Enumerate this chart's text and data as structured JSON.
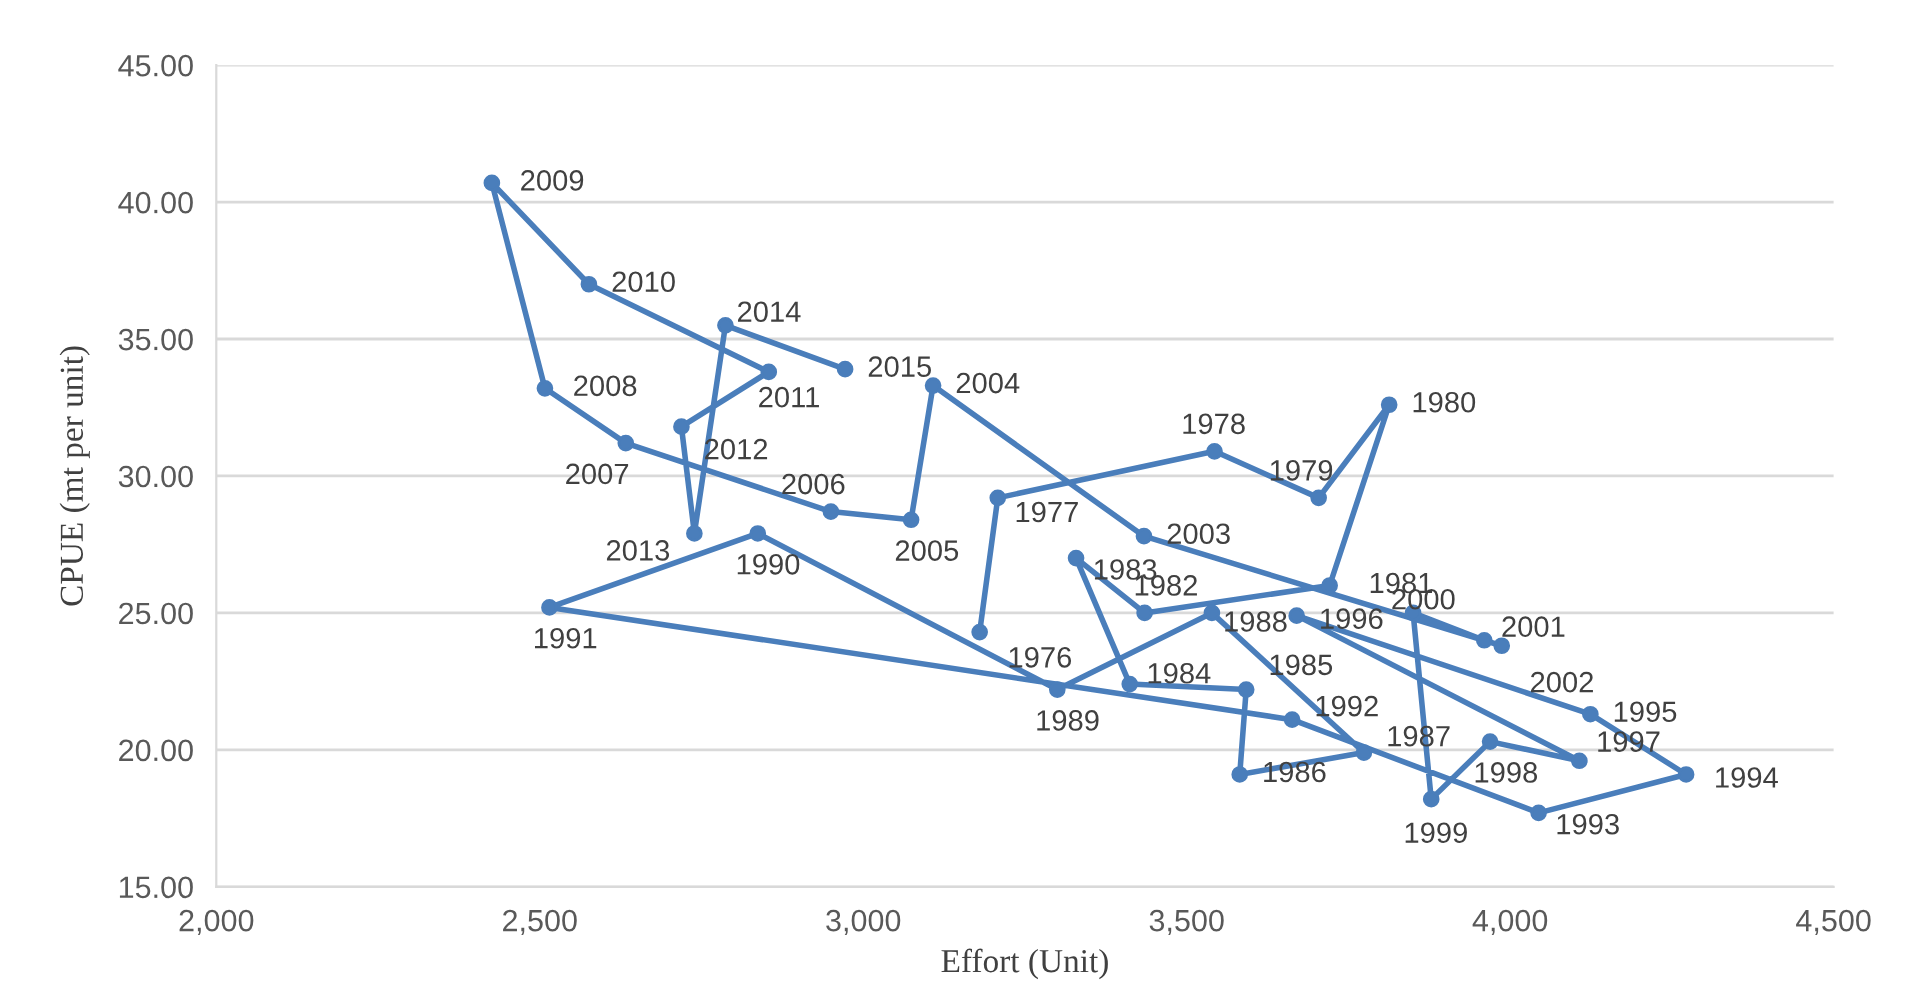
{
  "chart_data": {
    "type": "line",
    "xlabel": "Effort (Unit)",
    "ylabel": "CPUE (mt per unit)",
    "xlim": [
      2000,
      4500
    ],
    "xticks": [
      {
        "value": 2000,
        "label": "2,000"
      },
      {
        "value": 2500,
        "label": "2,500"
      },
      {
        "value": 3000,
        "label": "3,000"
      },
      {
        "value": 3500,
        "label": "3,500"
      },
      {
        "value": 4000,
        "label": "4,000"
      },
      {
        "value": 4500,
        "label": "4,500"
      }
    ],
    "ylim": [
      15,
      45
    ],
    "yticks": [
      {
        "value": 15,
        "label": "15.00"
      },
      {
        "value": 20,
        "label": "20.00"
      },
      {
        "value": 25,
        "label": "25.00"
      },
      {
        "value": 30,
        "label": "30.00"
      },
      {
        "value": 35,
        "label": "35.00"
      },
      {
        "value": 40,
        "label": "40.00"
      },
      {
        "value": 45,
        "label": "45.00"
      }
    ],
    "grid": "y",
    "marker": "circle",
    "line_style": "solid",
    "series": [
      {
        "color": "#4a7ebb",
        "x": [
          3180,
          3208,
          3543,
          3704,
          3813,
          3721,
          3435,
          3329,
          3412,
          3592,
          3582,
          3774,
          3539,
          3300,
          2837,
          2515,
          3663,
          4044,
          4272,
          4124,
          3670,
          4107,
          3969,
          3878,
          3850,
          3960,
          3987,
          3434,
          3108,
          3074,
          2950,
          2633,
          2508,
          2426,
          2576,
          2854,
          2719,
          2739,
          2787,
          2972
        ],
        "values": [
          24.3,
          29.2,
          30.9,
          29.2,
          32.6,
          26.0,
          25.0,
          27.0,
          22.4,
          22.2,
          19.1,
          19.9,
          25.0,
          22.2,
          27.9,
          25.2,
          21.1,
          17.7,
          19.1,
          21.3,
          24.9,
          19.6,
          20.3,
          18.2,
          25.0,
          24.0,
          23.8,
          27.8,
          33.3,
          28.4,
          28.7,
          31.2,
          33.2,
          40.7,
          37.0,
          33.8,
          31.8,
          27.9,
          35.5,
          33.9
        ]
      }
    ],
    "annotations": [
      {
        "text": "1976",
        "x": 3180,
        "y": 24.3
      },
      {
        "text": "1977",
        "x": 3208,
        "y": 29.2
      },
      {
        "text": "1978",
        "x": 3543,
        "y": 30.9
      },
      {
        "text": "1979",
        "x": 3704,
        "y": 29.2
      },
      {
        "text": "1980",
        "x": 3813,
        "y": 32.6
      },
      {
        "text": "1981",
        "x": 3721,
        "y": 26.0
      },
      {
        "text": "1982",
        "x": 3435,
        "y": 25.0
      },
      {
        "text": "1983",
        "x": 3329,
        "y": 27.0
      },
      {
        "text": "1984",
        "x": 3412,
        "y": 22.4
      },
      {
        "text": "1985",
        "x": 3592,
        "y": 22.2
      },
      {
        "text": "1986",
        "x": 3582,
        "y": 19.1
      },
      {
        "text": "1987",
        "x": 3774,
        "y": 19.9
      },
      {
        "text": "1988",
        "x": 3539,
        "y": 25.0
      },
      {
        "text": "1989",
        "x": 3300,
        "y": 22.2
      },
      {
        "text": "1990",
        "x": 2837,
        "y": 27.9
      },
      {
        "text": "1991",
        "x": 2515,
        "y": 25.2
      },
      {
        "text": "1992",
        "x": 3663,
        "y": 21.1
      },
      {
        "text": "1993",
        "x": 4044,
        "y": 17.7
      },
      {
        "text": "1994",
        "x": 4272,
        "y": 19.1
      },
      {
        "text": "1995",
        "x": 4124,
        "y": 21.3
      },
      {
        "text": "1996",
        "x": 3670,
        "y": 24.9
      },
      {
        "text": "1997",
        "x": 4107,
        "y": 19.6
      },
      {
        "text": "1998",
        "x": 3969,
        "y": 20.3
      },
      {
        "text": "1999",
        "x": 3878,
        "y": 18.2
      },
      {
        "text": "2000",
        "x": 3850,
        "y": 25.0
      },
      {
        "text": "2001",
        "x": 3960,
        "y": 24.0
      },
      {
        "text": "2002",
        "x": 3987,
        "y": 23.8
      },
      {
        "text": "2003",
        "x": 3434,
        "y": 27.8
      },
      {
        "text": "2004",
        "x": 3108,
        "y": 33.3
      },
      {
        "text": "2005",
        "x": 3074,
        "y": 28.4
      },
      {
        "text": "2006",
        "x": 2950,
        "y": 28.7
      },
      {
        "text": "2007",
        "x": 2633,
        "y": 31.2
      },
      {
        "text": "2008",
        "x": 2508,
        "y": 33.2
      },
      {
        "text": "2009",
        "x": 2426,
        "y": 40.7
      },
      {
        "text": "2010",
        "x": 2576,
        "y": 37.0
      },
      {
        "text": "2011",
        "x": 2854,
        "y": 33.8
      },
      {
        "text": "2012",
        "x": 2719,
        "y": 31.8
      },
      {
        "text": "2013",
        "x": 2739,
        "y": 27.9
      },
      {
        "text": "2014",
        "x": 2787,
        "y": 35.5
      },
      {
        "text": "2015",
        "x": 2972,
        "y": 33.9
      }
    ]
  }
}
